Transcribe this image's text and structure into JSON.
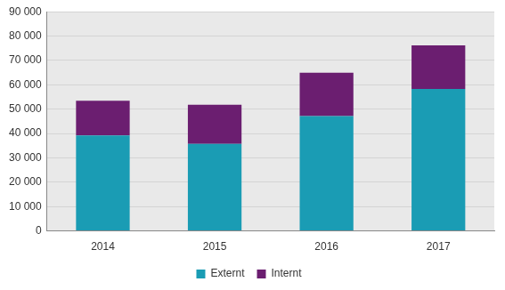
{
  "chart_data": {
    "type": "bar",
    "stacked": true,
    "categories": [
      "2014",
      "2015",
      "2016",
      "2017"
    ],
    "series": [
      {
        "name": "Externt",
        "color": "#1a9cb4",
        "values": [
          39200,
          35700,
          47200,
          58300
        ]
      },
      {
        "name": "Internt",
        "color": "#6b1e70",
        "values": [
          14300,
          16100,
          17800,
          17900
        ]
      }
    ],
    "ylim": [
      0,
      90000
    ],
    "yticks": [
      0,
      {
        "value": 10000,
        "label": "10 000"
      },
      {
        "value": 20000,
        "label": "20 000"
      },
      {
        "value": 30000,
        "label": "30 000"
      },
      {
        "value": 40000,
        "label": "40 000"
      },
      {
        "value": 50000,
        "label": "50 000"
      },
      {
        "value": 60000,
        "label": "60 000"
      },
      {
        "value": 70000,
        "label": "70 000"
      },
      {
        "value": 80000,
        "label": "80 000"
      },
      {
        "value": 90000,
        "label": "90 000"
      }
    ],
    "grid": true,
    "legend": "bottom"
  }
}
